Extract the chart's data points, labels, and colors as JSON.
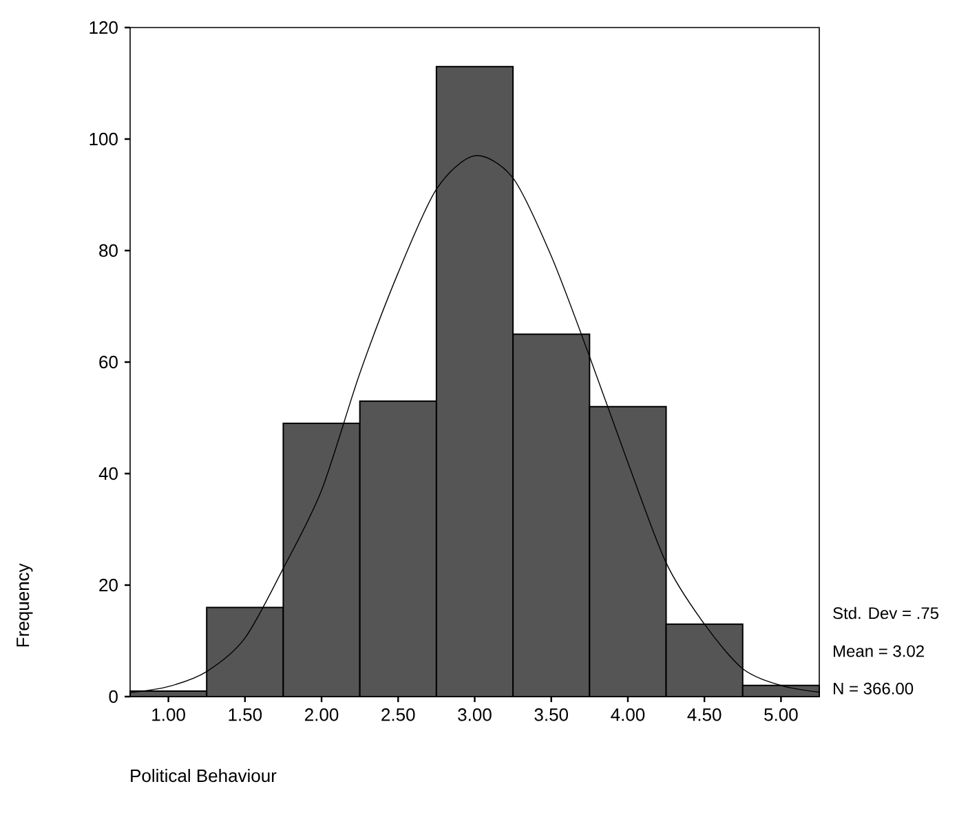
{
  "chart_data": {
    "type": "histogram",
    "xlabel": "Political Behaviour",
    "ylabel": "Frequency",
    "bins": [
      0.75,
      1.25,
      1.75,
      2.25,
      2.75,
      3.25,
      3.75,
      4.25,
      4.75,
      5.25
    ],
    "series": [
      {
        "color": "#555555",
        "values": [
          1,
          16,
          49,
          53,
          113,
          65,
          52,
          13,
          2
        ]
      },
      {
        "type": "line",
        "color": "#000000",
        "x": [
          0.75,
          1.0,
          1.25,
          1.5,
          1.75,
          2.0,
          2.25,
          2.5,
          2.75,
          3.0,
          3.25,
          3.5,
          3.75,
          4.0,
          4.25,
          4.5,
          4.75,
          5.0,
          5.25
        ],
        "values": [
          0.7,
          1.8,
          4.5,
          10.5,
          23,
          37,
          58,
          76,
          91,
          97,
          93,
          79,
          61,
          42,
          24,
          13,
          5,
          2,
          0.8
        ]
      }
    ],
    "xlim": [
      0.75,
      5.25
    ],
    "ylim": [
      0,
      120
    ],
    "xticks": [
      {
        "value": 1,
        "label": "1.00"
      },
      {
        "value": 1.5,
        "label": "1.50"
      },
      {
        "value": 2,
        "label": "2.00"
      },
      {
        "value": 2.5,
        "label": "2.50"
      },
      {
        "value": 3,
        "label": "3.00"
      },
      {
        "value": 3.5,
        "label": "3.50"
      },
      {
        "value": 4,
        "label": "4.00"
      },
      {
        "value": 4.5,
        "label": "4.50"
      },
      {
        "value": 5,
        "label": "5.00"
      }
    ],
    "yticks": [
      0,
      20,
      40,
      60,
      80,
      100,
      120
    ],
    "grid": false,
    "marker": "none",
    "line_style": "solid",
    "annotations": [
      "Std. Dev = .75",
      "Mean = 3.02",
      "N = 366.00"
    ]
  }
}
